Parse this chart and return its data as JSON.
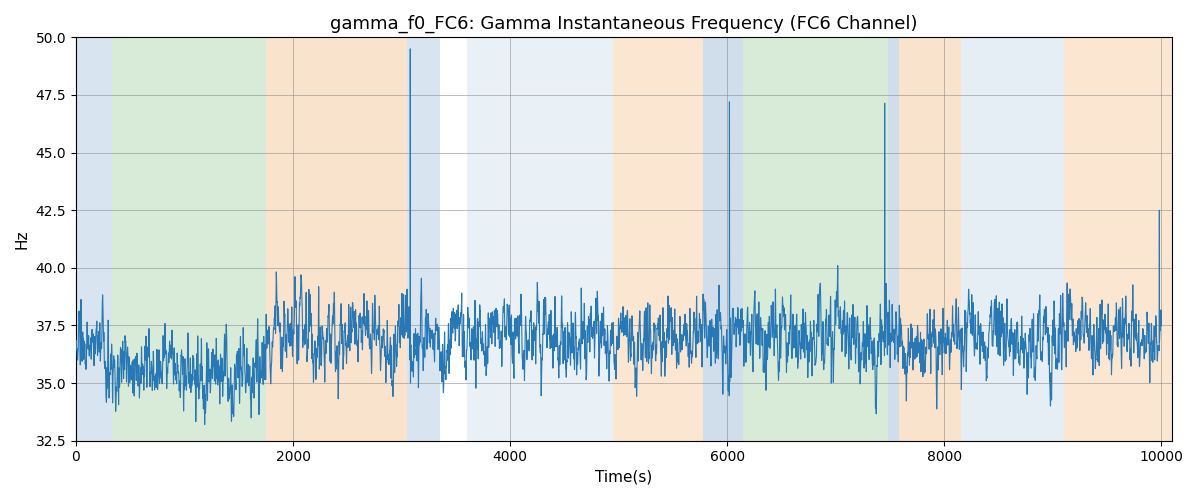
{
  "title": "gamma_f0_FC6: Gamma Instantaneous Frequency (FC6 Channel)",
  "xlabel": "Time(s)",
  "ylabel": "Hz",
  "xlim": [
    0,
    10100
  ],
  "ylim": [
    32.5,
    50.0
  ],
  "yticks": [
    32.5,
    35.0,
    37.5,
    40.0,
    42.5,
    45.0,
    47.5,
    50.0
  ],
  "xticks": [
    0,
    2000,
    4000,
    6000,
    8000,
    10000
  ],
  "line_color": "#2878b5",
  "line_width": 0.8,
  "bg_regions": [
    {
      "xmin": 0,
      "xmax": 330,
      "color": "#aac4de",
      "alpha": 0.45
    },
    {
      "xmin": 330,
      "xmax": 1750,
      "color": "#b2d8b2",
      "alpha": 0.5
    },
    {
      "xmin": 1750,
      "xmax": 3050,
      "color": "#f5c89a",
      "alpha": 0.5
    },
    {
      "xmin": 3050,
      "xmax": 3350,
      "color": "#aac4de",
      "alpha": 0.45
    },
    {
      "xmin": 3350,
      "xmax": 3600,
      "color": "#ffffff",
      "alpha": 0.0
    },
    {
      "xmin": 3600,
      "xmax": 4950,
      "color": "#aac4de",
      "alpha": 0.25
    },
    {
      "xmin": 4950,
      "xmax": 5780,
      "color": "#f5c89a",
      "alpha": 0.45
    },
    {
      "xmin": 5780,
      "xmax": 6150,
      "color": "#aac4de",
      "alpha": 0.55
    },
    {
      "xmin": 6150,
      "xmax": 7480,
      "color": "#b2d8b2",
      "alpha": 0.5
    },
    {
      "xmin": 7480,
      "xmax": 7580,
      "color": "#aac4de",
      "alpha": 0.55
    },
    {
      "xmin": 7580,
      "xmax": 8150,
      "color": "#f5c89a",
      "alpha": 0.5
    },
    {
      "xmin": 8150,
      "xmax": 9100,
      "color": "#aac4de",
      "alpha": 0.3
    },
    {
      "xmin": 9100,
      "xmax": 10200,
      "color": "#f5c89a",
      "alpha": 0.45
    }
  ],
  "seed": 12345,
  "n_points": 10000,
  "base_freq": 37.0,
  "title_fontsize": 13,
  "label_fontsize": 11
}
